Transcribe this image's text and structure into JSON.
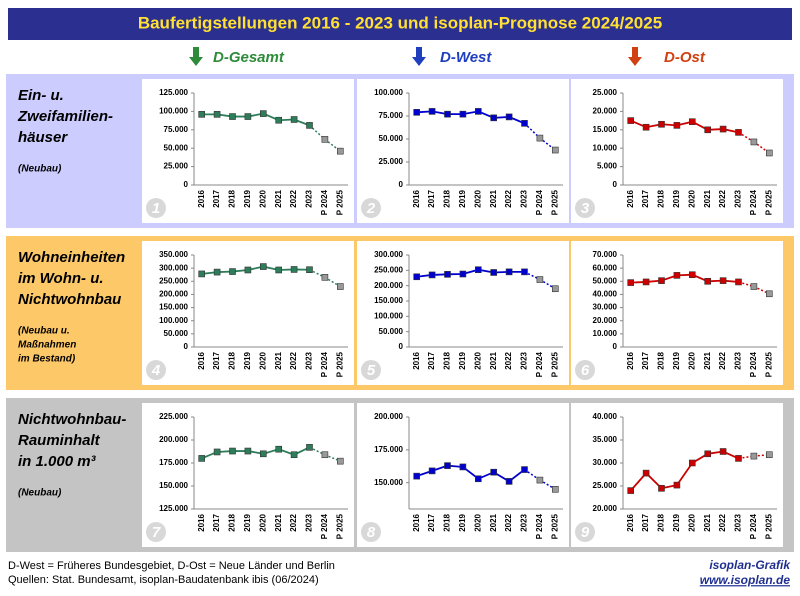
{
  "header": {
    "title": "Baufertigstellungen 2016 - 2023 und isoplan-Prognose 2024/2025"
  },
  "columns": [
    "D-Gesamt",
    "D-West",
    "D-Ost"
  ],
  "rows": [
    {
      "title": [
        "Ein- u.",
        "Zweifamilien-",
        "häuser"
      ],
      "note": [
        "(Neubau)"
      ]
    },
    {
      "title": [
        "Wohneinheiten",
        "im Wohn- u.",
        "Nichtwohnbau"
      ],
      "note": [
        "(Neubau u.",
        "Maßnahmen",
        "im Bestand)"
      ]
    },
    {
      "title": [
        "Nichtwohnbau-",
        "Rauminhalt",
        "in 1.000 m³"
      ],
      "note": [
        "(Neubau)"
      ]
    }
  ],
  "footer": {
    "legend": "D-West = Früheres Bundesgebiet, D-Ost = Neue Länder und Berlin",
    "source": "Quellen: Stat. Bundesamt, isoplan-Baudatenbank ibis (06/2024)",
    "brand": "isoplan-Grafik",
    "url": "www.isoplan.de"
  },
  "chart_data": [
    {
      "type": "line",
      "badge": "1",
      "categories": [
        "2016",
        "2017",
        "2018",
        "2019",
        "2020",
        "2021",
        "2022",
        "2023",
        "P 2024",
        "P 2025"
      ],
      "series": [
        {
          "color": "#2e7d5a",
          "values": [
            96000,
            96000,
            93000,
            93000,
            97000,
            88000,
            89000,
            81000,
            null,
            null
          ]
        },
        {
          "color": "#999999",
          "dash": true,
          "values": [
            null,
            null,
            null,
            null,
            null,
            null,
            null,
            null,
            62000,
            46000
          ]
        }
      ],
      "ylim": [
        0,
        125000
      ],
      "yticks": [
        0,
        {
          "value": 25000,
          "label": "25.000"
        },
        {
          "value": 50000,
          "label": "50.000"
        },
        {
          "value": 75000,
          "label": "75.000"
        },
        {
          "value": 100000,
          "label": "100.000"
        },
        {
          "value": 125000,
          "label": "125.000"
        }
      ]
    },
    {
      "type": "line",
      "badge": "2",
      "categories": [
        "2016",
        "2017",
        "2018",
        "2019",
        "2020",
        "2021",
        "2022",
        "2023",
        "P 2024",
        "P 2025"
      ],
      "series": [
        {
          "color": "#0000cc",
          "values": [
            79000,
            80000,
            77000,
            77000,
            80000,
            73000,
            74000,
            67000,
            null,
            null
          ]
        },
        {
          "color": "#999999",
          "dash": true,
          "values": [
            null,
            null,
            null,
            null,
            null,
            null,
            null,
            null,
            51000,
            38000
          ]
        }
      ],
      "ylim": [
        0,
        100000
      ],
      "yticks": [
        0,
        {
          "value": 25000,
          "label": "25.000"
        },
        {
          "value": 50000,
          "label": "50.000"
        },
        {
          "value": 75000,
          "label": "75.000"
        },
        {
          "value": 100000,
          "label": "100.000"
        }
      ]
    },
    {
      "type": "line",
      "badge": "3",
      "categories": [
        "2016",
        "2017",
        "2018",
        "2019",
        "2020",
        "2021",
        "2022",
        "2023",
        "P 2024",
        "P 2025"
      ],
      "series": [
        {
          "color": "#cc0000",
          "values": [
            17500,
            15700,
            16500,
            16200,
            17200,
            15000,
            15200,
            14300,
            null,
            null
          ]
        },
        {
          "color": "#999999",
          "dash": true,
          "values": [
            null,
            null,
            null,
            null,
            null,
            null,
            null,
            null,
            11700,
            8700
          ]
        }
      ],
      "ylim": [
        0,
        25000
      ],
      "yticks": [
        0,
        {
          "value": 5000,
          "label": "5.000"
        },
        {
          "value": 10000,
          "label": "10.000"
        },
        {
          "value": 15000,
          "label": "15.000"
        },
        {
          "value": 20000,
          "label": "20.000"
        },
        {
          "value": 25000,
          "label": "25.000"
        }
      ]
    },
    {
      "type": "line",
      "badge": "4",
      "categories": [
        "2016",
        "2017",
        "2018",
        "2019",
        "2020",
        "2021",
        "2022",
        "2023",
        "P 2024",
        "P 2025"
      ],
      "series": [
        {
          "color": "#2e7d5a",
          "values": [
            278000,
            285000,
            287000,
            293000,
            306000,
            293000,
            295000,
            294000,
            null,
            null
          ]
        },
        {
          "color": "#999999",
          "dash": true,
          "values": [
            null,
            null,
            null,
            null,
            null,
            null,
            null,
            null,
            265000,
            230000
          ]
        }
      ],
      "ylim": [
        0,
        350000
      ],
      "yticks": [
        0,
        {
          "value": 50000,
          "label": "50.000"
        },
        {
          "value": 100000,
          "label": "100.000"
        },
        {
          "value": 150000,
          "label": "150.000"
        },
        {
          "value": 200000,
          "label": "200.000"
        },
        {
          "value": 250000,
          "label": "250.000"
        },
        {
          "value": 300000,
          "label": "300.000"
        },
        {
          "value": 350000,
          "label": "350.000"
        }
      ]
    },
    {
      "type": "line",
      "badge": "5",
      "categories": [
        "2016",
        "2017",
        "2018",
        "2019",
        "2020",
        "2021",
        "2022",
        "2023",
        "P 2024",
        "P 2025"
      ],
      "series": [
        {
          "color": "#0000cc",
          "values": [
            229000,
            235000,
            237000,
            238000,
            252000,
            243000,
            245000,
            245000,
            null,
            null
          ]
        },
        {
          "color": "#999999",
          "dash": true,
          "values": [
            null,
            null,
            null,
            null,
            null,
            null,
            null,
            null,
            220000,
            190000
          ]
        }
      ],
      "ylim": [
        0,
        300000
      ],
      "yticks": [
        0,
        {
          "value": 50000,
          "label": "50.000"
        },
        {
          "value": 100000,
          "label": "100.000"
        },
        {
          "value": 150000,
          "label": "150.000"
        },
        {
          "value": 200000,
          "label": "200.000"
        },
        {
          "value": 250000,
          "label": "250.000"
        },
        {
          "value": 300000,
          "label": "300.000"
        }
      ]
    },
    {
      "type": "line",
      "badge": "6",
      "categories": [
        "2016",
        "2017",
        "2018",
        "2019",
        "2020",
        "2021",
        "2022",
        "2023",
        "P 2024",
        "P 2025"
      ],
      "series": [
        {
          "color": "#cc0000",
          "values": [
            49000,
            49500,
            50500,
            54500,
            55000,
            50000,
            50500,
            49500,
            null,
            null
          ]
        },
        {
          "color": "#999999",
          "dash": true,
          "values": [
            null,
            null,
            null,
            null,
            null,
            null,
            null,
            null,
            46000,
            40500
          ]
        }
      ],
      "ylim": [
        0,
        70000
      ],
      "yticks": [
        0,
        {
          "value": 10000,
          "label": "10.000"
        },
        {
          "value": 20000,
          "label": "20.000"
        },
        {
          "value": 30000,
          "label": "30.000"
        },
        {
          "value": 40000,
          "label": "40.000"
        },
        {
          "value": 50000,
          "label": "50.000"
        },
        {
          "value": 60000,
          "label": "60.000"
        },
        {
          "value": 70000,
          "label": "70.000"
        }
      ]
    },
    {
      "type": "line",
      "badge": "7",
      "categories": [
        "2016",
        "2017",
        "2018",
        "2019",
        "2020",
        "2021",
        "2022",
        "2023",
        "P 2024",
        "P 2025"
      ],
      "series": [
        {
          "color": "#2e7d5a",
          "values": [
            180000,
            187000,
            188000,
            188000,
            185000,
            190000,
            184000,
            192000,
            null,
            null
          ]
        },
        {
          "color": "#999999",
          "dash": true,
          "values": [
            null,
            null,
            null,
            null,
            null,
            null,
            null,
            null,
            184000,
            177000
          ]
        }
      ],
      "ylim": [
        125000,
        225000
      ],
      "yticks": [
        {
          "value": 125000,
          "label": "125.000"
        },
        {
          "value": 150000,
          "label": "150.000"
        },
        {
          "value": 175000,
          "label": "175.000"
        },
        {
          "value": 200000,
          "label": "200.000"
        },
        {
          "value": 225000,
          "label": "225.000"
        }
      ]
    },
    {
      "type": "line",
      "badge": "8",
      "categories": [
        "2016",
        "2017",
        "2018",
        "2019",
        "2020",
        "2021",
        "2022",
        "2023",
        "P 2024",
        "P 2025"
      ],
      "series": [
        {
          "color": "#0000cc",
          "values": [
            155000,
            159000,
            163000,
            162000,
            153000,
            158000,
            151000,
            160000,
            null,
            null
          ]
        },
        {
          "color": "#999999",
          "dash": true,
          "values": [
            null,
            null,
            null,
            null,
            null,
            null,
            null,
            null,
            152000,
            145000
          ]
        }
      ],
      "ylim": [
        130000,
        200000
      ],
      "yticks": [
        {
          "value": 150000,
          "label": "150.000"
        },
        {
          "value": 175000,
          "label": "175.000"
        },
        {
          "value": 200000,
          "label": "200.000"
        }
      ]
    },
    {
      "type": "line",
      "badge": "9",
      "categories": [
        "2016",
        "2017",
        "2018",
        "2019",
        "2020",
        "2021",
        "2022",
        "2023",
        "P 2024",
        "P 2025"
      ],
      "series": [
        {
          "color": "#cc0000",
          "values": [
            24000,
            27800,
            24500,
            25200,
            30000,
            32000,
            32500,
            31000,
            null,
            null
          ]
        },
        {
          "color": "#999999",
          "dash": true,
          "values": [
            null,
            null,
            null,
            null,
            null,
            null,
            null,
            null,
            31500,
            31800
          ]
        }
      ],
      "ylim": [
        20000,
        40000
      ],
      "yticks": [
        {
          "value": 20000,
          "label": "20.000"
        },
        {
          "value": 25000,
          "label": "25.000"
        },
        {
          "value": 30000,
          "label": "30.000"
        },
        {
          "value": 35000,
          "label": "35.000"
        },
        {
          "value": 40000,
          "label": "40.000"
        }
      ]
    }
  ]
}
